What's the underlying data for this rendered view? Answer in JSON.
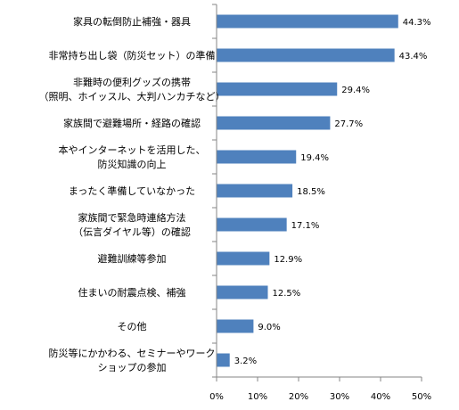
{
  "chart_data": {
    "type": "bar",
    "orientation": "horizontal",
    "categories": [
      [
        "家具の転倒防止補強・器具"
      ],
      [
        "非常持ち出し袋（防災セット）の準備"
      ],
      [
        "非難時の便利グッズの携帯",
        "（照明、ホイッスル、大判ハンカチなど）"
      ],
      [
        "家族間で避難場所・経路の確認"
      ],
      [
        "本やインターネットを活用した、",
        "防災知識の向上"
      ],
      [
        "まったく準備していなかった"
      ],
      [
        "家族間で緊急時連絡方法",
        "（伝言ダイヤル等）の確認"
      ],
      [
        "避難訓練等参加"
      ],
      [
        "住まいの耐震点検、補強"
      ],
      [
        "その他"
      ],
      [
        "防災等にかかわる、セミナーやワーク",
        "ショップの参加"
      ]
    ],
    "values": [
      44.3,
      43.4,
      29.4,
      27.7,
      19.4,
      18.5,
      17.1,
      12.9,
      12.5,
      9.0,
      3.2
    ],
    "value_labels": [
      "44.3%",
      "43.4%",
      "29.4%",
      "27.7%",
      "19.4%",
      "18.5%",
      "17.1%",
      "12.9%",
      "12.5%",
      "9.0%",
      "3.2%"
    ],
    "xlim": [
      0,
      50
    ],
    "x_ticks": [
      0,
      10,
      20,
      30,
      40,
      50
    ],
    "x_tick_labels": [
      "0%",
      "10%",
      "20%",
      "30%",
      "40%",
      "50%"
    ],
    "bar_color": "#4f81bd",
    "axis_color": "#868686",
    "grid": false,
    "title": "",
    "xlabel": "",
    "ylabel": ""
  }
}
